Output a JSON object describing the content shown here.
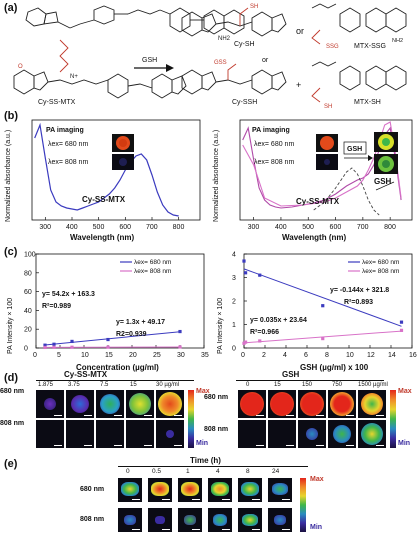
{
  "figure": {
    "panel_a": {
      "label": "(a)",
      "reagent": "GSH",
      "or": "or",
      "compounds": {
        "cy_ss_mtx": "Cy-SS-MTX",
        "cy_sh": "Cy-SH",
        "cy_ssh": "Cy-SSH",
        "mtx_ssg": "MTX-SSG",
        "mtx_sh": "MTX-SH"
      },
      "atoms": {
        "sh": "SH",
        "gss": "GSS",
        "ssg": "SSG",
        "n": "N",
        "nh2": "NH2",
        "o": "O",
        "i": "I",
        "h": "H",
        "n_plus": "N+"
      }
    },
    "panel_b": {
      "label": "(b)",
      "left": {
        "header": "PA imaging",
        "ex680": "λex= 680 nm",
        "ex808": "λex= 808 nm",
        "curve_label": "Cy-SS-MTX",
        "ylabel": "Normalized absorbance (a.u.)",
        "xlabel": "Wavelength (nm)",
        "xticks": [
          "300",
          "400",
          "500",
          "600",
          "700",
          "800"
        ]
      },
      "right": {
        "header": "PA imaging",
        "ex680": "λex= 680 nm",
        "ex808": "λex= 808 nm",
        "gsh_box": "GSH",
        "gsh_arrow": "GSH",
        "curve_label": "Cy-SS-MTX",
        "ylabel": "Normalized absorbance (a.u.)",
        "xlabel": "Wavelength (nm)",
        "xticks": [
          "300",
          "400",
          "500",
          "600",
          "700",
          "800"
        ]
      }
    },
    "panel_c": {
      "label": "(c)",
      "left": {
        "ylabel": "PA Intensity × 100",
        "xlabel": "Concentration (µg/ml)",
        "legend_680": "λex= 680 nm",
        "legend_808": "λex= 808 nm",
        "eq_680": "y= 54.2x + 163.3",
        "r2_680": "R²=0.989",
        "eq_808": "y= 1.3x + 49.17",
        "r2_808": "R2=0.939",
        "yticks": [
          "0",
          "20",
          "40",
          "60",
          "80",
          "100"
        ],
        "xticks": [
          "0",
          "5",
          "10",
          "15",
          "20",
          "25",
          "30",
          "35"
        ]
      },
      "right": {
        "ylabel": "PA Intensity × 100",
        "xlabel": "GSH  (µg/ml) x 100",
        "legend_680": "λex= 680 nm",
        "legend_808": "λex= 808 nm",
        "eq_680": "y= -0.144x + 321.8",
        "r2_680": "R²=0.893",
        "eq_808": "y= 0.035x + 23.64",
        "r2_808": "R²=0.966",
        "yticks": [
          "0",
          "1",
          "2",
          "3",
          "4"
        ],
        "xticks": [
          "0",
          "2",
          "4",
          "6",
          "8",
          "10",
          "12",
          "14",
          "16"
        ]
      }
    },
    "panel_d": {
      "label": "(d)",
      "left_title": "Cy-SS-MTX",
      "right_title": "GSH",
      "left_concs": [
        "1.875",
        "3.75",
        "7.5",
        "15",
        "30 µg/ml"
      ],
      "right_concs": [
        "0",
        "15",
        "150",
        "750",
        "1500 µg/ml"
      ],
      "row_680": "680 nm",
      "row_808": "808 nm",
      "max": "Max",
      "min": "Min"
    },
    "panel_e": {
      "label": "(e)",
      "title": "Time (h)",
      "times": [
        "0",
        "0.5",
        "1",
        "4",
        "8",
        "24"
      ],
      "row_680": "680 nm",
      "row_808": "808 nm",
      "max": "Max",
      "min": "Min"
    }
  },
  "chart_data": [
    {
      "type": "line",
      "title": "",
      "xlabel": "Wavelength (nm)",
      "ylabel": "Normalized absorbance (a.u.)",
      "xlim": [
        250,
        880
      ],
      "series": [
        {
          "name": "Cy-SS-MTX",
          "x": [
            260,
            280,
            300,
            320,
            340,
            360,
            380,
            400,
            420,
            440,
            460,
            480,
            500,
            520,
            540,
            560,
            580,
            600,
            620,
            640,
            660,
            680,
            700,
            720,
            740,
            760,
            780,
            800
          ],
          "y": [
            0.82,
            0.95,
            0.62,
            0.3,
            0.18,
            0.14,
            0.12,
            0.11,
            0.1,
            0.12,
            0.14,
            0.16,
            0.18,
            0.22,
            0.26,
            0.32,
            0.4,
            0.5,
            0.58,
            0.64,
            0.66,
            0.6,
            0.45,
            0.28,
            0.15,
            0.08,
            0.05,
            0.04
          ]
        }
      ]
    },
    {
      "type": "line",
      "title": "",
      "xlabel": "Wavelength (nm)",
      "ylabel": "Normalized absorbance (a.u.)",
      "xlim": [
        250,
        880
      ],
      "series": [
        {
          "name": "Cy-SS-MTX",
          "x": [
            260,
            280,
            300,
            320,
            340,
            360,
            380,
            400,
            440,
            480,
            520,
            560,
            600,
            640,
            680,
            700,
            720,
            740,
            760,
            780,
            800,
            820,
            840
          ],
          "y": [
            0.8,
            0.92,
            0.6,
            0.32,
            0.2,
            0.15,
            0.13,
            0.12,
            0.13,
            0.15,
            0.17,
            0.2,
            0.26,
            0.34,
            0.4,
            0.42,
            0.46,
            0.55,
            0.7,
            0.85,
            0.92,
            0.6,
            0.2
          ]
        },
        {
          "x": [
            260,
            300,
            340,
            400,
            480,
            560,
            600,
            640,
            680,
            700,
            720,
            740,
            760,
            780,
            800,
            820,
            840
          ],
          "y": [
            0.75,
            0.55,
            0.22,
            0.14,
            0.15,
            0.18,
            0.22,
            0.28,
            0.34,
            0.4,
            0.5,
            0.62,
            0.78,
            0.95,
            0.98,
            0.65,
            0.22
          ]
        },
        {
          "x": [
            520,
            560,
            600,
            640,
            660,
            680,
            700,
            720,
            740,
            760
          ],
          "y": [
            0.1,
            0.18,
            0.32,
            0.48,
            0.52,
            0.46,
            0.34,
            0.2,
            0.1,
            0.05
          ]
        }
      ]
    },
    {
      "type": "scatter",
      "title": "",
      "xlabel": "Concentration (µg/ml)",
      "ylabel": "PA Intensity × 100",
      "xlim": [
        0,
        35
      ],
      "ylim": [
        0,
        100
      ],
      "series": [
        {
          "name": "λex= 680 nm",
          "x": [
            1.875,
            3.75,
            7.5,
            15,
            30
          ],
          "y": [
            3,
            4,
            7,
            9,
            17.5
          ]
        },
        {
          "name": "λex= 808 nm",
          "x": [
            1.875,
            3.75,
            7.5,
            15,
            30
          ],
          "y": [
            0.6,
            0.7,
            0.8,
            0.9,
            1.1
          ]
        }
      ]
    },
    {
      "type": "scatter",
      "title": "",
      "xlabel": "GSH  (µg/ml) x 100",
      "ylabel": "PA Intensity × 100",
      "xlim": [
        0,
        16
      ],
      "ylim": [
        0,
        4
      ],
      "series": [
        {
          "name": "λex= 680 nm",
          "x": [
            0,
            0.15,
            1.5,
            7.5,
            15
          ],
          "y": [
            3.7,
            3.2,
            3.1,
            1.8,
            1.1
          ]
        },
        {
          "name": "λex= 808 nm",
          "x": [
            0,
            0.15,
            1.5,
            7.5,
            15
          ],
          "y": [
            0.2,
            0.25,
            0.3,
            0.4,
            0.75
          ]
        }
      ]
    }
  ]
}
